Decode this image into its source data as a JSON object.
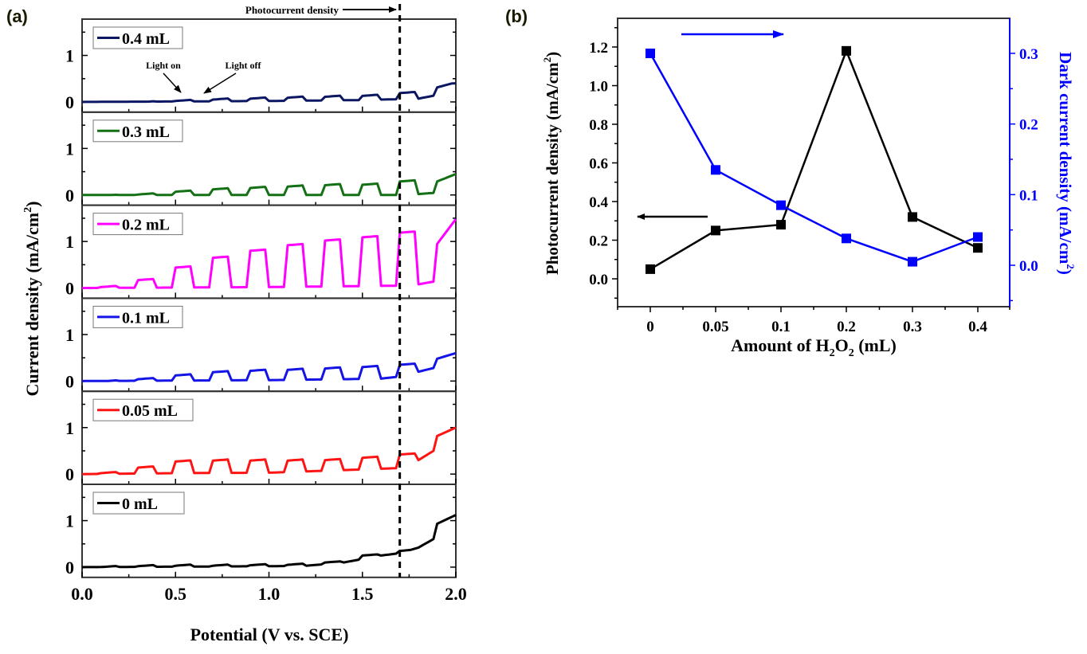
{
  "chart_data": [
    {
      "panel_label": "(a)",
      "type": "line",
      "xlabel": "Potential (V vs. SCE)",
      "ylabel": "Current density (mA/cm2)",
      "ylabel_parts": {
        "main": "Current density (mA/cm",
        "sup": "2",
        "end": ")"
      },
      "xlim": [
        0,
        2.0
      ],
      "ylim_each_panel": [
        -0.22,
        1.78
      ],
      "xticks": [
        "0.0",
        "0.5",
        "1.0",
        "1.5",
        "2.0"
      ],
      "xtick_values": [
        0,
        0.5,
        1.0,
        1.5,
        2.0
      ],
      "yticks": [
        "0",
        "1"
      ],
      "ytick_values": [
        0,
        1
      ],
      "marker_line": {
        "x": 1.7,
        "label": "Photocurrent density",
        "style": "dashed"
      },
      "annotations": [
        {
          "text": "Light on",
          "points_to": [
            0.72,
            0.07
          ]
        },
        {
          "text": "Light off",
          "points_to": [
            0.8,
            0.09
          ]
        }
      ],
      "light_on_intervals": [
        [
          0.1,
          0.2
        ],
        [
          0.3,
          0.4
        ],
        [
          0.5,
          0.6
        ],
        [
          0.7,
          0.8
        ],
        [
          0.9,
          1.0
        ],
        [
          1.1,
          1.2
        ],
        [
          1.3,
          1.4
        ],
        [
          1.5,
          1.6
        ],
        [
          1.7,
          1.8
        ],
        [
          1.9,
          2.0
        ]
      ],
      "series": [
        {
          "name": "0.4 mL",
          "color": "#0b1763",
          "dark": [
            [
              0,
              0
            ],
            [
              0.5,
              0.01
            ],
            [
              1.0,
              0.02
            ],
            [
              1.5,
              0.04
            ],
            [
              1.8,
              0.07
            ],
            [
              1.9,
              0.15
            ],
            [
              2.0,
              0.4
            ]
          ],
          "light": [
            0.01,
            0.02,
            0.05,
            0.08,
            0.1,
            0.12,
            0.14,
            0.16,
            0.22,
            0.42
          ]
        },
        {
          "name": "0.3 mL",
          "color": "#147014",
          "dark": [
            [
              0,
              0
            ],
            [
              1.0,
              0.0
            ],
            [
              1.7,
              0.0
            ],
            [
              1.8,
              0.02
            ],
            [
              1.9,
              0.05
            ],
            [
              2.0,
              0.45
            ]
          ],
          "light": [
            0.01,
            0.04,
            0.1,
            0.15,
            0.18,
            0.21,
            0.24,
            0.25,
            0.32,
            0.45
          ]
        },
        {
          "name": "0.2 mL",
          "color": "#ff00ff",
          "dark": [
            [
              0,
              0
            ],
            [
              1.0,
              0.02
            ],
            [
              1.7,
              0.05
            ],
            [
              1.8,
              0.08
            ],
            [
              1.9,
              0.15
            ],
            [
              2.0,
              1.48
            ]
          ],
          "light": [
            0.05,
            0.2,
            0.47,
            0.68,
            0.83,
            0.95,
            1.05,
            1.12,
            1.22,
            1.48
          ]
        },
        {
          "name": "0.1 mL",
          "color": "#1414e6",
          "dark": [
            [
              0,
              0
            ],
            [
              1.0,
              0.02
            ],
            [
              1.6,
              0.05
            ],
            [
              1.7,
              0.1
            ],
            [
              1.8,
              0.2
            ],
            [
              1.9,
              0.3
            ],
            [
              2.0,
              0.6
            ]
          ],
          "light": [
            0.02,
            0.07,
            0.15,
            0.22,
            0.25,
            0.27,
            0.3,
            0.33,
            0.38,
            0.6
          ]
        },
        {
          "name": "0.05 mL",
          "color": "#ff1414",
          "dark": [
            [
              0,
              0
            ],
            [
              0.5,
              0.02
            ],
            [
              1.0,
              0.03
            ],
            [
              1.5,
              0.1
            ],
            [
              1.7,
              0.13
            ],
            [
              1.8,
              0.3
            ],
            [
              1.9,
              0.55
            ],
            [
              2.0,
              1.0
            ]
          ],
          "light": [
            0.05,
            0.17,
            0.3,
            0.32,
            0.32,
            0.32,
            0.33,
            0.38,
            0.45,
            1.0
          ]
        },
        {
          "name": "0 mL",
          "color": "#000000",
          "dark": [
            [
              0,
              0
            ],
            [
              0.5,
              0.01
            ],
            [
              1.0,
              0.02
            ],
            [
              1.2,
              0.03
            ],
            [
              1.4,
              0.1
            ],
            [
              1.6,
              0.25
            ],
            [
              1.7,
              0.3
            ],
            [
              1.8,
              0.42
            ],
            [
              1.9,
              0.65
            ],
            [
              2.0,
              1.12
            ]
          ],
          "light": [
            0.03,
            0.05,
            0.06,
            0.06,
            0.07,
            0.08,
            0.13,
            0.28,
            0.38,
            1.12
          ]
        }
      ]
    },
    {
      "panel_label": "(b)",
      "type": "line",
      "xlabel": "Amount of H2O2 (mL)",
      "xlabel_parts": {
        "a": "Amount of H",
        "sub1": "2",
        "b": "O",
        "sub2": "2",
        "c": " (mL)"
      },
      "categories": [
        "0",
        "0.05",
        "0.1",
        "0.2",
        "0.3",
        "0.4"
      ],
      "ylabel_left": "Photocurrent density (mA/cm2)",
      "ylabel_left_parts": {
        "main": "Photocurrent density (mA/cm",
        "sup": "2",
        "end": ")"
      },
      "ylabel_right": "Dark current density (mA/cm2)",
      "ylabel_right_parts": {
        "main": "Dark current density (mA/cm",
        "sup": "2",
        "end": ")"
      },
      "ylim_left": [
        -0.15,
        1.35
      ],
      "ylim_right": [
        -0.05,
        0.35
      ],
      "yticks_left": [
        "0.0",
        "0.2",
        "0.4",
        "0.6",
        "0.8",
        "1.0",
        "1.2"
      ],
      "yticks_left_values": [
        0,
        0.2,
        0.4,
        0.6,
        0.8,
        1.0,
        1.2
      ],
      "yticks_right": [
        "0.0",
        "0.1",
        "0.2",
        "0.3"
      ],
      "yticks_right_values": [
        0,
        0.1,
        0.2,
        0.3
      ],
      "series": [
        {
          "name": "Photocurrent density",
          "axis": "left",
          "color": "#000000",
          "marker": "square",
          "values": [
            0.05,
            0.25,
            0.28,
            1.18,
            0.32,
            0.16
          ]
        },
        {
          "name": "Dark current density",
          "axis": "right",
          "color": "#0000ff",
          "marker": "square",
          "values": [
            0.3,
            0.135,
            0.085,
            0.038,
            0.005,
            0.04
          ]
        }
      ],
      "arrows": [
        {
          "series": "Dark current density",
          "direction": "right"
        },
        {
          "series": "Photocurrent density",
          "direction": "left"
        }
      ]
    }
  ]
}
